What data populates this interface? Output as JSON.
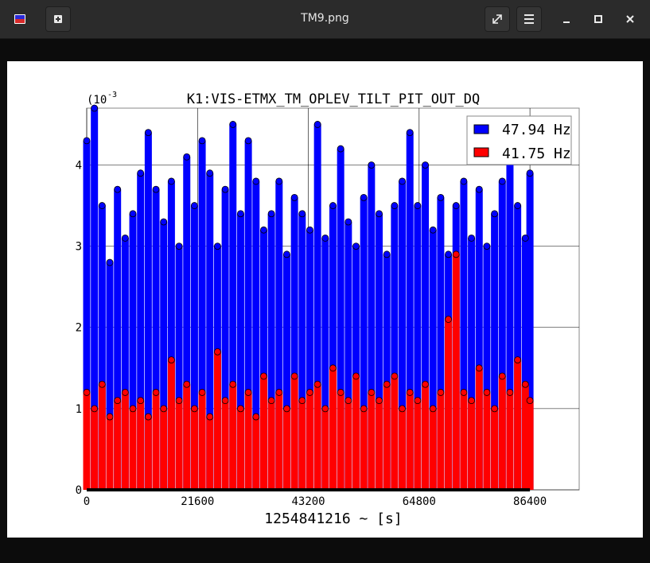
{
  "window": {
    "title": "TM9.png"
  },
  "icons": {
    "app": "image-viewer-icon",
    "new_tab": "new-tab-icon",
    "fullscreen": "fullscreen-icon",
    "menu": "hamburger-menu-icon",
    "minimize": "minimize-icon",
    "maximize": "maximize-icon",
    "close": "close-icon"
  },
  "colors": {
    "series_a": "#0000ff",
    "series_b": "#ff0000",
    "titlebar": "#2b2b2b"
  },
  "chart_data": {
    "type": "scatter",
    "title": "K1:VIS-ETMX_TM_OPLEV_TILT_PIT_OUT_DQ",
    "xlabel": "1254841216 ~ [s]",
    "ylabel": "",
    "y_exponent_label": "(10",
    "y_exponent": "-3",
    "xlim": [
      0,
      96000
    ],
    "ylim": [
      0,
      0.0047
    ],
    "xticks": [
      "0",
      "21600",
      "43200",
      "64800",
      "86400"
    ],
    "yticks": [
      "0",
      "1",
      "2",
      "3",
      "4"
    ],
    "legend_position": "top-right",
    "grid": true,
    "style": "stem with circle markers",
    "series": [
      {
        "name": "47.94 Hz",
        "color": "#0000ff",
        "x": [
          0,
          1500,
          3000,
          4500,
          6000,
          7500,
          9000,
          10500,
          12000,
          13500,
          15000,
          16500,
          18000,
          19500,
          21000,
          22500,
          24000,
          25500,
          27000,
          28500,
          30000,
          31500,
          33000,
          34500,
          36000,
          37500,
          39000,
          40500,
          42000,
          43500,
          45000,
          46500,
          48000,
          49500,
          51000,
          52500,
          54000,
          55500,
          57000,
          58500,
          60000,
          61500,
          63000,
          64500,
          66000,
          67500,
          69000,
          70500,
          72000,
          73500,
          75000,
          76500,
          78000,
          79500,
          81000,
          82500,
          84000,
          85500,
          86400
        ],
        "y": [
          0.0043,
          0.0047,
          0.0035,
          0.0028,
          0.0037,
          0.0031,
          0.0034,
          0.0039,
          0.0044,
          0.0037,
          0.0033,
          0.0038,
          0.003,
          0.0041,
          0.0035,
          0.0043,
          0.0039,
          0.003,
          0.0037,
          0.0045,
          0.0034,
          0.0043,
          0.0038,
          0.0032,
          0.0034,
          0.0038,
          0.0029,
          0.0036,
          0.0034,
          0.0032,
          0.0045,
          0.0031,
          0.0035,
          0.0042,
          0.0033,
          0.003,
          0.0036,
          0.004,
          0.0034,
          0.0029,
          0.0035,
          0.0038,
          0.0044,
          0.0035,
          0.004,
          0.0032,
          0.0036,
          0.0029,
          0.0035,
          0.0038,
          0.0031,
          0.0037,
          0.003,
          0.0034,
          0.0038,
          0.0045,
          0.0035,
          0.0031,
          0.0039
        ]
      },
      {
        "name": "41.75 Hz",
        "color": "#ff0000",
        "x": [
          0,
          1500,
          3000,
          4500,
          6000,
          7500,
          9000,
          10500,
          12000,
          13500,
          15000,
          16500,
          18000,
          19500,
          21000,
          22500,
          24000,
          25500,
          27000,
          28500,
          30000,
          31500,
          33000,
          34500,
          36000,
          37500,
          39000,
          40500,
          42000,
          43500,
          45000,
          46500,
          48000,
          49500,
          51000,
          52500,
          54000,
          55500,
          57000,
          58500,
          60000,
          61500,
          63000,
          64500,
          66000,
          67500,
          69000,
          70500,
          72000,
          73500,
          75000,
          76500,
          78000,
          79500,
          81000,
          82500,
          84000,
          85500,
          86400
        ],
        "y": [
          0.0012,
          0.001,
          0.0013,
          0.0009,
          0.0011,
          0.0012,
          0.001,
          0.0011,
          0.0009,
          0.0012,
          0.001,
          0.0016,
          0.0011,
          0.0013,
          0.001,
          0.0012,
          0.0009,
          0.0017,
          0.0011,
          0.0013,
          0.001,
          0.0012,
          0.0009,
          0.0014,
          0.0011,
          0.0012,
          0.001,
          0.0014,
          0.0011,
          0.0012,
          0.0013,
          0.001,
          0.0015,
          0.0012,
          0.0011,
          0.0014,
          0.001,
          0.0012,
          0.0011,
          0.0013,
          0.0014,
          0.001,
          0.0012,
          0.0011,
          0.0013,
          0.001,
          0.0012,
          0.0021,
          0.0029,
          0.0012,
          0.0011,
          0.0015,
          0.0012,
          0.001,
          0.0014,
          0.0012,
          0.0016,
          0.0013,
          0.0011
        ]
      }
    ]
  }
}
